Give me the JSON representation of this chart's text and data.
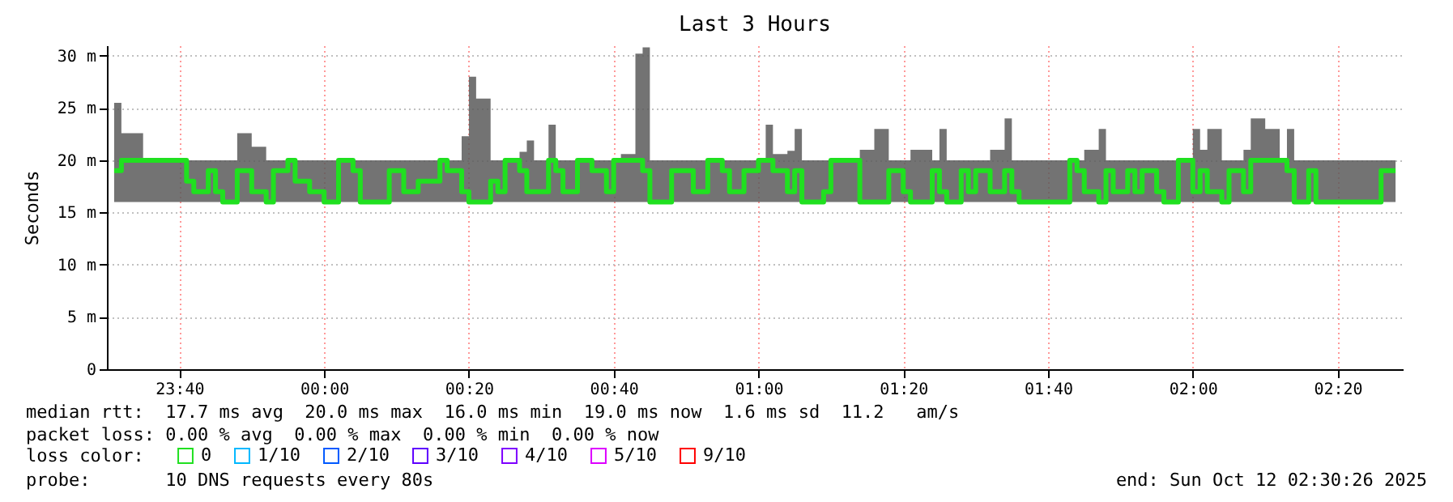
{
  "chart_data": {
    "type": "step",
    "title": "Last 3 Hours",
    "ylabel": "Seconds",
    "legend_title": "loss color:",
    "legend": "bottom",
    "grid": true,
    "line_style": "solid",
    "marker": "none",
    "xlim": [
      "2025-10-11T23:30",
      "2025-10-12T02:29"
    ],
    "xticks": [
      {
        "value": "2025-10-11T23:40",
        "label": "23:40"
      },
      {
        "value": "2025-10-12T00:00",
        "label": "00:00"
      },
      {
        "value": "2025-10-12T00:20",
        "label": "00:20"
      },
      {
        "value": "2025-10-12T00:40",
        "label": "00:40"
      },
      {
        "value": "2025-10-12T01:00",
        "label": "01:00"
      },
      {
        "value": "2025-10-12T01:20",
        "label": "01:20"
      },
      {
        "value": "2025-10-12T01:40",
        "label": "01:40"
      },
      {
        "value": "2025-10-12T02:00",
        "label": "02:00"
      },
      {
        "value": "2025-10-12T02:20",
        "label": "02:20"
      }
    ],
    "ylim": [
      0,
      31
    ],
    "yticks": [
      {
        "value": 0,
        "label": "0"
      },
      {
        "value": 5,
        "label": "5 m"
      },
      {
        "value": 10,
        "label": "10 m"
      },
      {
        "value": 15,
        "label": "15 m"
      },
      {
        "value": 20,
        "label": "20 m"
      },
      {
        "value": 25,
        "label": "25 m"
      },
      {
        "value": 30,
        "label": "30 m"
      }
    ],
    "x": [
      "2025-10-11T23:31",
      "2025-10-11T23:32",
      "2025-10-11T23:35",
      "2025-10-11T23:39",
      "2025-10-11T23:41",
      "2025-10-11T23:42",
      "2025-10-11T23:44",
      "2025-10-11T23:45",
      "2025-10-11T23:46",
      "2025-10-11T23:48",
      "2025-10-11T23:50",
      "2025-10-11T23:52",
      "2025-10-11T23:53",
      "2025-10-11T23:55",
      "2025-10-11T23:56",
      "2025-10-11T23:58",
      "2025-10-12T00:00",
      "2025-10-12T00:02",
      "2025-10-12T00:04",
      "2025-10-12T00:05",
      "2025-10-12T00:09",
      "2025-10-12T00:11",
      "2025-10-12T00:13",
      "2025-10-12T00:16",
      "2025-10-12T00:17",
      "2025-10-12T00:19",
      "2025-10-12T00:20",
      "2025-10-12T00:21",
      "2025-10-12T00:23",
      "2025-10-12T00:24",
      "2025-10-12T00:25",
      "2025-10-12T00:27",
      "2025-10-12T00:28",
      "2025-10-12T00:29",
      "2025-10-12T00:31",
      "2025-10-12T00:32",
      "2025-10-12T00:33",
      "2025-10-12T00:35",
      "2025-10-12T00:37",
      "2025-10-12T00:39",
      "2025-10-12T00:40",
      "2025-10-12T00:41",
      "2025-10-12T00:43",
      "2025-10-12T00:44",
      "2025-10-12T00:45",
      "2025-10-12T00:48",
      "2025-10-12T00:51",
      "2025-10-12T00:53",
      "2025-10-12T00:55",
      "2025-10-12T00:56",
      "2025-10-12T00:58",
      "2025-10-12T01:00",
      "2025-10-12T01:01",
      "2025-10-12T01:02",
      "2025-10-12T01:04",
      "2025-10-12T01:05",
      "2025-10-12T01:06",
      "2025-10-12T01:09",
      "2025-10-12T01:10",
      "2025-10-12T01:12",
      "2025-10-12T01:14",
      "2025-10-12T01:16",
      "2025-10-12T01:18",
      "2025-10-12T01:20",
      "2025-10-12T01:21",
      "2025-10-12T01:24",
      "2025-10-12T01:25",
      "2025-10-12T01:26",
      "2025-10-12T01:28",
      "2025-10-12T01:29",
      "2025-10-12T01:30",
      "2025-10-12T01:32",
      "2025-10-12T01:34",
      "2025-10-12T01:35",
      "2025-10-12T01:36",
      "2025-10-12T01:40",
      "2025-10-12T01:43",
      "2025-10-12T01:44",
      "2025-10-12T01:45",
      "2025-10-12T01:47",
      "2025-10-12T01:48",
      "2025-10-12T01:49",
      "2025-10-12T01:51",
      "2025-10-12T01:52",
      "2025-10-12T01:53",
      "2025-10-12T01:55",
      "2025-10-12T01:56",
      "2025-10-12T01:58",
      "2025-10-12T02:00",
      "2025-10-12T02:01",
      "2025-10-12T02:02",
      "2025-10-12T02:04",
      "2025-10-12T02:05",
      "2025-10-12T02:07",
      "2025-10-12T02:08",
      "2025-10-12T02:10",
      "2025-10-12T02:12",
      "2025-10-12T02:13",
      "2025-10-12T02:14",
      "2025-10-12T02:16",
      "2025-10-12T02:17",
      "2025-10-12T02:18",
      "2025-10-12T02:21",
      "2025-10-12T02:25",
      "2025-10-12T02:26",
      "2025-10-12T02:28"
    ],
    "series": [
      {
        "name": "0",
        "color": "#20e020",
        "values": [
          19,
          20,
          20,
          20,
          18,
          17,
          19,
          17,
          16,
          19,
          17,
          16,
          19,
          20,
          18,
          17,
          16,
          20,
          19,
          16,
          19,
          17,
          18,
          20,
          19,
          17,
          16,
          16,
          18,
          17,
          20,
          19,
          17,
          17,
          20,
          19,
          17,
          20,
          19,
          17,
          20,
          20,
          20,
          19,
          16,
          19,
          17,
          20,
          19,
          17,
          19,
          20,
          20,
          19,
          17,
          19,
          16,
          17,
          20,
          20,
          16,
          16,
          19,
          17,
          16,
          19,
          17,
          16,
          19,
          17,
          19,
          17,
          19,
          17,
          16,
          16,
          20,
          19,
          17,
          16,
          19,
          17,
          19,
          17,
          19,
          17,
          16,
          20,
          17,
          19,
          17,
          16,
          19,
          17,
          20,
          20,
          20,
          19,
          16,
          19,
          16,
          16,
          16,
          16,
          19,
          19
        ],
        "lower": [
          16,
          16,
          16,
          16,
          16,
          16,
          16,
          16,
          16,
          16,
          16,
          16,
          16,
          16,
          16,
          16,
          16,
          16,
          16,
          16,
          16,
          16,
          16,
          16,
          16,
          16,
          16,
          16,
          16,
          16,
          16,
          16,
          16,
          16,
          16,
          16,
          16,
          16,
          16,
          16,
          16,
          16,
          16,
          16,
          16,
          16,
          16,
          16,
          16,
          16,
          16,
          16,
          16,
          16,
          16,
          16,
          16,
          16,
          16,
          16,
          16,
          16,
          16,
          16,
          16,
          16,
          16,
          16,
          16,
          16,
          16,
          16,
          16,
          16,
          16,
          16,
          16,
          16,
          16,
          16,
          16,
          16,
          16,
          16,
          16,
          16,
          16,
          16,
          16,
          16,
          16,
          16,
          16,
          16,
          16,
          16,
          16,
          16,
          16,
          16,
          16,
          16,
          16,
          16,
          16,
          16
        ],
        "upper": [
          25.5,
          22.6,
          20,
          20,
          20,
          20,
          20,
          20,
          20,
          22.6,
          21.3,
          20,
          20,
          20,
          20,
          20,
          20,
          20,
          20,
          20,
          20,
          20,
          20,
          20,
          20,
          22.3,
          28,
          25.9,
          20,
          20,
          20,
          20.8,
          21.9,
          20,
          23.4,
          20,
          20,
          20,
          20,
          20,
          20,
          20.6,
          30.2,
          30.8,
          20,
          20,
          20,
          20,
          20,
          20,
          20,
          20,
          23.4,
          20.6,
          20.9,
          23,
          20,
          20,
          20,
          20,
          21,
          23,
          20,
          20,
          21,
          20,
          23,
          20,
          20,
          20,
          20,
          21,
          24,
          20,
          20,
          20,
          20,
          20,
          21,
          23,
          20,
          20,
          20,
          20,
          20,
          20,
          20,
          20,
          23,
          21,
          23,
          20,
          20,
          21,
          24,
          23,
          20,
          23,
          20,
          20,
          20,
          20,
          20,
          20,
          20,
          20
        ]
      },
      {
        "name": "1/10",
        "color": "#00b8ff",
        "values": [
          null,
          null,
          null,
          null,
          null,
          null,
          null,
          null,
          null,
          null,
          null,
          null,
          null,
          null,
          null,
          null,
          null,
          null,
          null,
          null,
          null,
          null,
          null,
          null,
          null,
          null,
          null,
          null,
          null,
          null,
          null,
          null,
          null,
          null,
          null,
          null,
          null,
          null,
          null,
          null,
          null,
          null,
          null,
          null,
          null,
          null,
          null,
          null,
          null,
          null,
          null,
          null,
          null,
          null,
          null,
          null,
          null,
          null,
          null,
          null,
          null,
          null,
          null,
          null,
          null,
          null,
          null,
          null,
          null,
          null,
          null,
          null,
          null,
          null,
          null,
          null,
          null,
          null,
          null,
          null,
          null,
          null,
          null,
          null,
          null,
          null,
          null,
          null,
          null,
          null,
          null,
          null,
          null,
          null,
          null,
          null,
          null,
          null,
          null,
          null,
          null,
          null,
          null,
          null,
          null,
          null
        ]
      },
      {
        "name": "2/10",
        "color": "#0059ff",
        "values": [
          null,
          null,
          null,
          null,
          null,
          null,
          null,
          null,
          null,
          null,
          null,
          null,
          null,
          null,
          null,
          null,
          null,
          null,
          null,
          null,
          null,
          null,
          null,
          null,
          null,
          null,
          null,
          null,
          null,
          null,
          null,
          null,
          null,
          null,
          null,
          null,
          null,
          null,
          null,
          null,
          null,
          null,
          null,
          null,
          null,
          null,
          null,
          null,
          null,
          null,
          null,
          null,
          null,
          null,
          null,
          null,
          null,
          null,
          null,
          null,
          null,
          null,
          null,
          null,
          null,
          null,
          null,
          null,
          null,
          null,
          null,
          null,
          null,
          null,
          null,
          null,
          null,
          null,
          null,
          null,
          null,
          null,
          null,
          null,
          null,
          null,
          null,
          null,
          null,
          null,
          null,
          null,
          null,
          null,
          null,
          null,
          null,
          null,
          null,
          null,
          null,
          null,
          null,
          null,
          null,
          null
        ]
      },
      {
        "name": "3/10",
        "color": "#5e00ff",
        "values": [
          null,
          null,
          null,
          null,
          null,
          null,
          null,
          null,
          null,
          null,
          null,
          null,
          null,
          null,
          null,
          null,
          null,
          null,
          null,
          null,
          null,
          null,
          null,
          null,
          null,
          null,
          null,
          null,
          null,
          null,
          null,
          null,
          null,
          null,
          null,
          null,
          null,
          null,
          null,
          null,
          null,
          null,
          null,
          null,
          null,
          null,
          null,
          null,
          null,
          null,
          null,
          null,
          null,
          null,
          null,
          null,
          null,
          null,
          null,
          null,
          null,
          null,
          null,
          null,
          null,
          null,
          null,
          null,
          null,
          null,
          null,
          null,
          null,
          null,
          null,
          null,
          null,
          null,
          null,
          null,
          null,
          null,
          null,
          null,
          null,
          null,
          null,
          null,
          null,
          null,
          null,
          null,
          null,
          null,
          null,
          null,
          null,
          null,
          null,
          null,
          null,
          null,
          null,
          null,
          null,
          null
        ]
      },
      {
        "name": "4/10",
        "color": "#7e00ff",
        "values": [
          null,
          null,
          null,
          null,
          null,
          null,
          null,
          null,
          null,
          null,
          null,
          null,
          null,
          null,
          null,
          null,
          null,
          null,
          null,
          null,
          null,
          null,
          null,
          null,
          null,
          null,
          null,
          null,
          null,
          null,
          null,
          null,
          null,
          null,
          null,
          null,
          null,
          null,
          null,
          null,
          null,
          null,
          null,
          null,
          null,
          null,
          null,
          null,
          null,
          null,
          null,
          null,
          null,
          null,
          null,
          null,
          null,
          null,
          null,
          null,
          null,
          null,
          null,
          null,
          null,
          null,
          null,
          null,
          null,
          null,
          null,
          null,
          null,
          null,
          null,
          null,
          null,
          null,
          null,
          null,
          null,
          null,
          null,
          null,
          null,
          null,
          null,
          null,
          null,
          null,
          null,
          null,
          null,
          null,
          null,
          null,
          null,
          null,
          null,
          null,
          null,
          null,
          null,
          null,
          null,
          null
        ]
      },
      {
        "name": "5/10",
        "color": "#dd00ff",
        "values": [
          null,
          null,
          null,
          null,
          null,
          null,
          null,
          null,
          null,
          null,
          null,
          null,
          null,
          null,
          null,
          null,
          null,
          null,
          null,
          null,
          null,
          null,
          null,
          null,
          null,
          null,
          null,
          null,
          null,
          null,
          null,
          null,
          null,
          null,
          null,
          null,
          null,
          null,
          null,
          null,
          null,
          null,
          null,
          null,
          null,
          null,
          null,
          null,
          null,
          null,
          null,
          null,
          null,
          null,
          null,
          null,
          null,
          null,
          null,
          null,
          null,
          null,
          null,
          null,
          null,
          null,
          null,
          null,
          null,
          null,
          null,
          null,
          null,
          null,
          null,
          null,
          null,
          null,
          null,
          null,
          null,
          null,
          null,
          null,
          null,
          null,
          null,
          null,
          null,
          null,
          null,
          null,
          null,
          null,
          null,
          null,
          null,
          null,
          null,
          null,
          null,
          null,
          null,
          null,
          null,
          null
        ]
      },
      {
        "name": "9/10",
        "color": "#ff0000",
        "values": [
          null,
          null,
          null,
          null,
          null,
          null,
          null,
          null,
          null,
          null,
          null,
          null,
          null,
          null,
          null,
          null,
          null,
          null,
          null,
          null,
          null,
          null,
          null,
          null,
          null,
          null,
          null,
          null,
          null,
          null,
          null,
          null,
          null,
          null,
          null,
          null,
          null,
          null,
          null,
          null,
          null,
          null,
          null,
          null,
          null,
          null,
          null,
          null,
          null,
          null,
          null,
          null,
          null,
          null,
          null,
          null,
          null,
          null,
          null,
          null,
          null,
          null,
          null,
          null,
          null,
          null,
          null,
          null,
          null,
          null,
          null,
          null,
          null,
          null,
          null,
          null,
          null,
          null,
          null,
          null,
          null,
          null,
          null,
          null,
          null,
          null,
          null,
          null,
          null,
          null,
          null,
          null,
          null,
          null,
          null,
          null,
          null,
          null,
          null,
          null,
          null,
          null,
          null,
          null,
          null,
          null
        ]
      }
    ],
    "annotations": [
      "median rtt:  17.7 ms avg  20.0 ms max  16.0 ms min  19.0 ms now  1.6 ms sd  11.2   am/s",
      "packet loss: 0.00 % avg  0.00 % max  0.00 % min  0.00 % now",
      "probe:       10 DNS requests every 80s",
      "end: Sun Oct 12 02:30:26 2025"
    ]
  }
}
